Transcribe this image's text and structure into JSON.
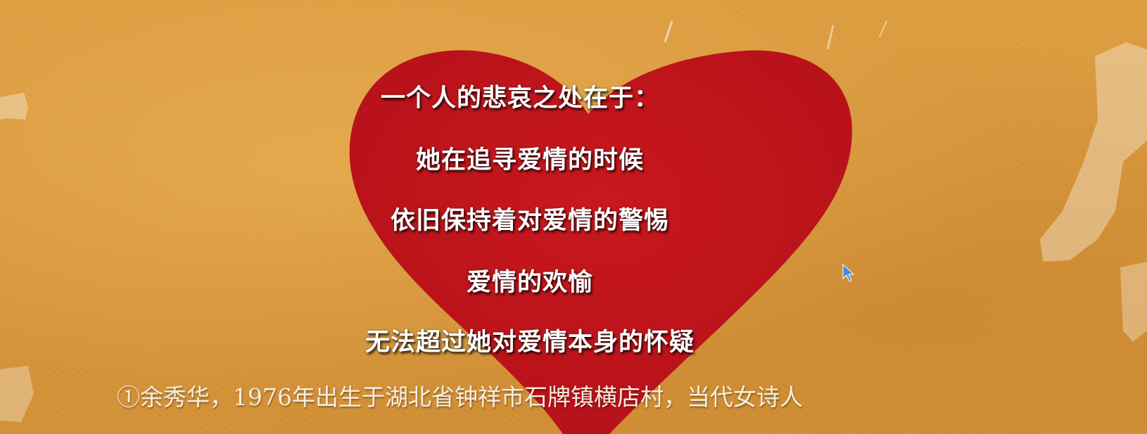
{
  "poem": {
    "lines": [
      "一个人的悲哀之处在于：",
      "她在追寻爱情的时候",
      "依旧保持着对爱情的警惕",
      "爱情的欢愉",
      "无法超过她对爱情本身的怀疑"
    ]
  },
  "footnote": "①余秀华，1976年出生于湖北省钟祥市石牌镇横店村，当代女诗人",
  "colors": {
    "background": "#d99a3c",
    "heart": "#c0141a",
    "text": "#ffffff"
  }
}
